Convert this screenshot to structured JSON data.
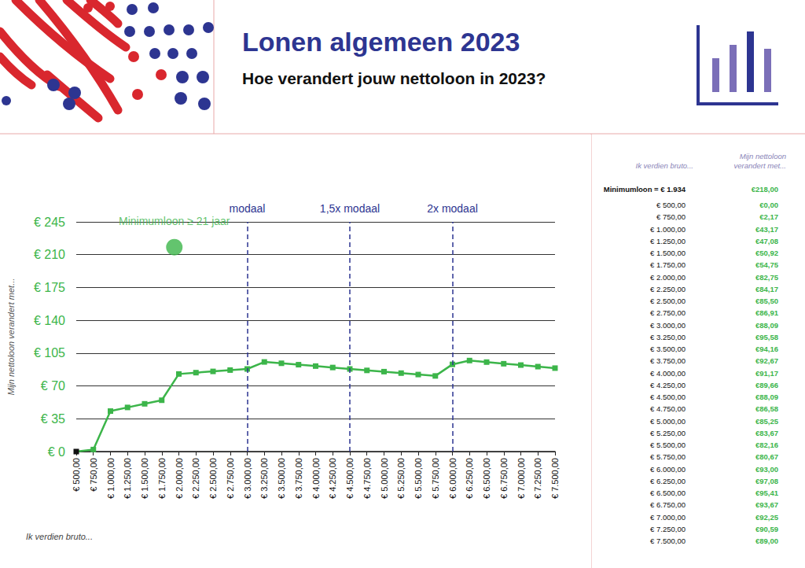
{
  "header": {
    "title": "Lonen algemeen 2023",
    "subtitle": "Hoe verandert jouw nettoloon in 2023?"
  },
  "chart_data": {
    "type": "line",
    "xlabel": "Ik verdien bruto...",
    "ylabel": "Mijn nettoloon verandert met...",
    "x": [
      500,
      750,
      1000,
      1250,
      1500,
      1750,
      2000,
      2250,
      2500,
      2750,
      3000,
      3250,
      3500,
      3750,
      4000,
      4250,
      4500,
      4750,
      5000,
      5250,
      5500,
      5750,
      6000,
      6250,
      6500,
      6750,
      7000,
      7250,
      7500
    ],
    "series": [
      {
        "color": "#3cb54a",
        "marker": "square",
        "line_style": "solid",
        "colors": [
          "#111111",
          "#3cb54a",
          "#3cb54a",
          "#3cb54a",
          "#3cb54a",
          "#3cb54a",
          "#3cb54a",
          "#3cb54a",
          "#3cb54a",
          "#3cb54a",
          "#3cb54a",
          "#3cb54a",
          "#3cb54a",
          "#3cb54a",
          "#3cb54a",
          "#3cb54a",
          "#3cb54a",
          "#3cb54a",
          "#3cb54a",
          "#3cb54a",
          "#3cb54a",
          "#3cb54a",
          "#3cb54a",
          "#3cb54a",
          "#3cb54a",
          "#3cb54a",
          "#3cb54a",
          "#3cb54a",
          "#3cb54a"
        ],
        "values": [
          0,
          2.17,
          43.17,
          47.08,
          50.92,
          54.75,
          82.75,
          84.17,
          85.5,
          86.91,
          88.09,
          95.58,
          94.16,
          92.67,
          91.17,
          89.66,
          88.09,
          86.58,
          85.25,
          83.67,
          82.16,
          80.67,
          93,
          97.08,
          95.41,
          93.67,
          92.25,
          90.59,
          89
        ]
      }
    ],
    "xlim": [
      500,
      7500
    ],
    "xticks": [
      {
        "value": 500,
        "label": "€ 500,00"
      },
      {
        "value": 750,
        "label": "€ 750,00"
      },
      {
        "value": 1000,
        "label": "€ 1.000,00"
      },
      {
        "value": 1250,
        "label": "€ 1.250,00"
      },
      {
        "value": 1500,
        "label": "€ 1.500,00"
      },
      {
        "value": 1750,
        "label": "€ 1.750,00"
      },
      {
        "value": 2000,
        "label": "€ 2.000,00"
      },
      {
        "value": 2250,
        "label": "€ 2.250,00"
      },
      {
        "value": 2500,
        "label": "€ 2.500,00"
      },
      {
        "value": 2750,
        "label": "€ 2.750,00"
      },
      {
        "value": 3000,
        "label": "€ 3.000,00"
      },
      {
        "value": 3250,
        "label": "€ 3.250,00"
      },
      {
        "value": 3500,
        "label": "€ 3.500,00"
      },
      {
        "value": 3750,
        "label": "€ 3.750,00"
      },
      {
        "value": 4000,
        "label": "€ 4.000,00"
      },
      {
        "value": 4250,
        "label": "€ 4.250,00"
      },
      {
        "value": 4500,
        "label": "€ 4.500,00"
      },
      {
        "value": 4750,
        "label": "€ 4.750,00"
      },
      {
        "value": 5000,
        "label": "€ 5.000,00"
      },
      {
        "value": 5250,
        "label": "€ 5.250,00"
      },
      {
        "value": 5500,
        "label": "€ 5.500,00"
      },
      {
        "value": 5750,
        "label": "€ 5.750,00"
      },
      {
        "value": 6000,
        "label": "€ 6.000,00"
      },
      {
        "value": 6250,
        "label": "€ 6.250,00"
      },
      {
        "value": 6500,
        "label": "€ 6.500,00"
      },
      {
        "value": 6750,
        "label": "€ 6.750,00"
      },
      {
        "value": 7000,
        "label": "€ 7.000,00"
      },
      {
        "value": 7250,
        "label": "€ 7.250,00"
      },
      {
        "value": 7500,
        "label": "€ 7.500,00"
      }
    ],
    "ylim": [
      0,
      245
    ],
    "yticks": [
      {
        "value": 0,
        "label": "€ 0"
      },
      {
        "value": 35,
        "label": "€ 35"
      },
      {
        "value": 70,
        "label": "€ 70"
      },
      {
        "value": 105,
        "label": "€ 105"
      },
      {
        "value": 140,
        "label": "€ 140"
      },
      {
        "value": 175,
        "label": "€ 175"
      },
      {
        "value": 210,
        "label": "€ 210"
      },
      {
        "value": 245,
        "label": "€ 245"
      }
    ],
    "grid": true,
    "reference_lines": [
      {
        "x": 3000,
        "label": "modaal"
      },
      {
        "x": 4500,
        "label": "1,5x modaal"
      },
      {
        "x": 6000,
        "label": "2x modaal"
      }
    ],
    "highlight_point": {
      "x": 1934,
      "y": 218,
      "label": "Minimumloon ≥ 21 jaar",
      "color": "#3cb54a"
    }
  },
  "table": {
    "columns": [
      "Ik verdien bruto...",
      "Mijn nettoloon verandert met..."
    ],
    "highlight": [
      "Minimumloon = € 1.934",
      "€218,00"
    ],
    "rows": [
      [
        "€ 500,00",
        "€0,00"
      ],
      [
        "€ 750,00",
        "€2,17"
      ],
      [
        "€ 1.000,00",
        "€43,17"
      ],
      [
        "€ 1.250,00",
        "€47,08"
      ],
      [
        "€ 1.500,00",
        "€50,92"
      ],
      [
        "€ 1.750,00",
        "€54,75"
      ],
      [
        "€ 2.000,00",
        "€82,75"
      ],
      [
        "€ 2.250,00",
        "€84,17"
      ],
      [
        "€ 2.500,00",
        "€85,50"
      ],
      [
        "€ 2.750,00",
        "€86,91"
      ],
      [
        "€ 3.000,00",
        "€88,09"
      ],
      [
        "€ 3.250,00",
        "€95,58"
      ],
      [
        "€ 3.500,00",
        "€94,16"
      ],
      [
        "€ 3.750,00",
        "€92,67"
      ],
      [
        "€ 4.000,00",
        "€91,17"
      ],
      [
        "€ 4.250,00",
        "€89,66"
      ],
      [
        "€ 4.500,00",
        "€88,09"
      ],
      [
        "€ 4.750,00",
        "€86,58"
      ],
      [
        "€ 5.000,00",
        "€85,25"
      ],
      [
        "€ 5.250,00",
        "€83,67"
      ],
      [
        "€ 5.500,00",
        "€82,16"
      ],
      [
        "€ 5.750,00",
        "€80,67"
      ],
      [
        "€ 6.000,00",
        "€93,00"
      ],
      [
        "€ 6.250,00",
        "€97,08"
      ],
      [
        "€ 6.500,00",
        "€95,41"
      ],
      [
        "€ 6.750,00",
        "€93,67"
      ],
      [
        "€ 7.000,00",
        "€92,25"
      ],
      [
        "€ 7.250,00",
        "€90,59"
      ],
      [
        "€ 7.500,00",
        "€89,00"
      ]
    ]
  }
}
